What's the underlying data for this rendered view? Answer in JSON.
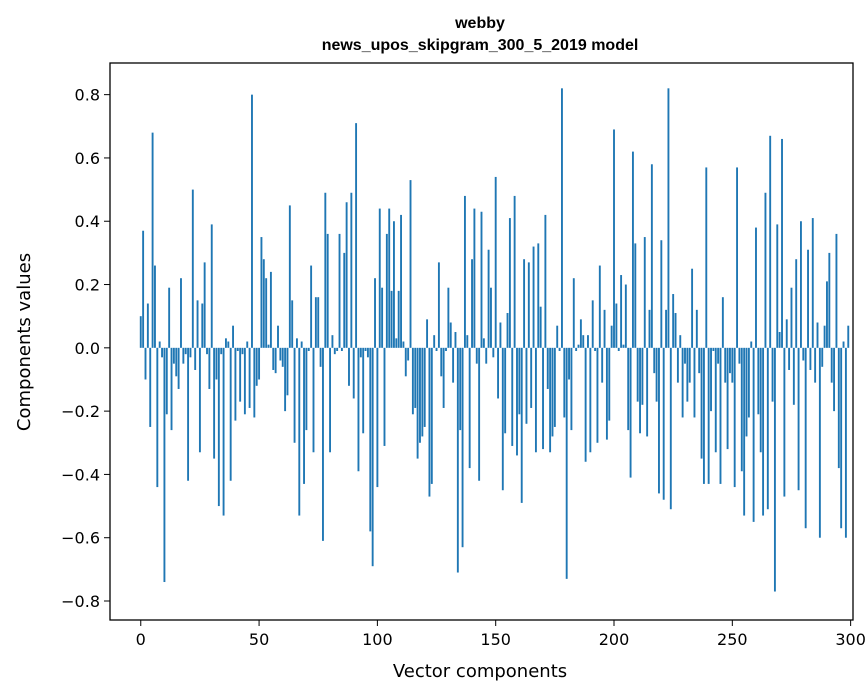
{
  "chart_data": {
    "type": "bar",
    "title_lines": [
      "webby",
      "news_upos_skipgram_300_5_2019 model"
    ],
    "xlabel": "Vector components",
    "ylabel": "Components values",
    "xlim": [
      -13,
      301
    ],
    "ylim": [
      -0.86,
      0.9
    ],
    "x_ticks": [
      0,
      50,
      100,
      150,
      200,
      250,
      300
    ],
    "y_ticks": [
      -0.8,
      -0.6,
      -0.4,
      -0.2,
      0.0,
      0.2,
      0.4,
      0.6,
      0.8
    ],
    "y_tick_labels": [
      "−0.8",
      "−0.6",
      "−0.4",
      "−0.2",
      "0.0",
      "0.2",
      "0.4",
      "0.6",
      "0.8"
    ],
    "grid": false,
    "bar_color": "#1f77b4",
    "x": "0..299",
    "values": [
      0.1,
      0.37,
      -0.1,
      0.14,
      -0.25,
      0.68,
      0.26,
      -0.44,
      0.02,
      -0.03,
      -0.74,
      -0.21,
      0.19,
      -0.26,
      -0.05,
      -0.09,
      -0.13,
      0.22,
      -0.05,
      -0.02,
      -0.42,
      -0.03,
      0.5,
      -0.07,
      0.15,
      -0.33,
      0.14,
      0.27,
      -0.02,
      -0.13,
      0.39,
      -0.35,
      -0.1,
      -0.5,
      -0.02,
      -0.53,
      0.03,
      0.02,
      -0.42,
      0.07,
      -0.23,
      -0.01,
      -0.17,
      -0.02,
      -0.21,
      0.02,
      -0.19,
      0.8,
      -0.22,
      -0.12,
      -0.1,
      0.35,
      0.28,
      0.22,
      0.01,
      0.24,
      -0.07,
      -0.08,
      0.07,
      -0.04,
      -0.06,
      -0.2,
      -0.15,
      0.45,
      0.15,
      -0.3,
      0.03,
      -0.53,
      0.02,
      -0.43,
      -0.26,
      -0.01,
      0.26,
      -0.33,
      0.16,
      0.16,
      -0.06,
      -0.61,
      0.49,
      0.36,
      -0.33,
      0.04,
      -0.02,
      -0.01,
      0.36,
      -0.01,
      0.3,
      0.46,
      -0.12,
      0.49,
      -0.16,
      0.71,
      -0.39,
      -0.03,
      -0.27,
      -0.01,
      -0.03,
      -0.58,
      -0.69,
      0.22,
      -0.44,
      0.44,
      0.19,
      -0.31,
      0.36,
      0.44,
      0.18,
      0.4,
      0.03,
      0.18,
      0.42,
      0.02,
      -0.09,
      -0.04,
      0.53,
      -0.21,
      -0.19,
      -0.35,
      -0.3,
      -0.28,
      -0.25,
      0.09,
      -0.47,
      -0.43,
      0.04,
      -0.01,
      0.27,
      -0.09,
      -0.19,
      -0.01,
      0.19,
      0.08,
      -0.11,
      0.05,
      -0.71,
      -0.26,
      -0.63,
      0.48,
      0.04,
      -0.38,
      0.28,
      0.44,
      -0.05,
      -0.42,
      0.43,
      0.03,
      -0.05,
      0.31,
      0.19,
      -0.03,
      0.54,
      -0.16,
      0.08,
      -0.45,
      -0.27,
      0.11,
      0.41,
      -0.31,
      0.48,
      -0.34,
      -0.21,
      -0.49,
      0.28,
      -0.24,
      0.27,
      -0.19,
      0.32,
      -0.33,
      0.33,
      0.13,
      -0.32,
      0.42,
      -0.13,
      -0.33,
      -0.28,
      -0.25,
      0.07,
      -0.01,
      0.82,
      -0.22,
      -0.73,
      -0.1,
      -0.26,
      0.22,
      -0.01,
      0.01,
      0.09,
      0.04,
      -0.36,
      0.04,
      -0.33,
      0.15,
      -0.01,
      -0.3,
      0.26,
      -0.11,
      0.12,
      -0.29,
      -0.23,
      0.07,
      0.69,
      0.14,
      -0.01,
      0.23,
      0.01,
      0.2,
      -0.26,
      -0.41,
      0.62,
      0.33,
      -0.17,
      -0.27,
      -0.18,
      0.35,
      -0.28,
      0.12,
      0.58,
      -0.08,
      -0.17,
      -0.46,
      0.34,
      -0.48,
      0.12,
      0.82,
      -0.51,
      0.17,
      0.11,
      -0.11,
      0.04,
      -0.22,
      -0.05,
      -0.17,
      -0.11,
      0.25,
      -0.22,
      0.12,
      -0.08,
      -0.35,
      -0.43,
      0.57,
      -0.43,
      -0.2,
      -0.01,
      -0.33,
      -0.05,
      -0.43,
      0.16,
      -0.11,
      -0.32,
      -0.08,
      -0.11,
      -0.44,
      0.57,
      -0.05,
      -0.39,
      -0.53,
      -0.28,
      -0.22,
      0.02,
      -0.55,
      0.38,
      -0.21,
      -0.33,
      -0.53,
      0.49,
      -0.51,
      0.67,
      -0.17,
      -0.77,
      0.39,
      0.05,
      0.66,
      -0.47,
      0.09,
      -0.07,
      0.19,
      -0.18,
      0.28,
      -0.45,
      0.4,
      -0.04,
      -0.57,
      0.31,
      -0.07,
      0.41,
      -0.11,
      0.08,
      -0.6,
      -0.06,
      0.07,
      0.21,
      0.3,
      -0.11,
      -0.2,
      0.36,
      -0.38,
      -0.57,
      0.02,
      -0.6,
      0.07
    ]
  }
}
